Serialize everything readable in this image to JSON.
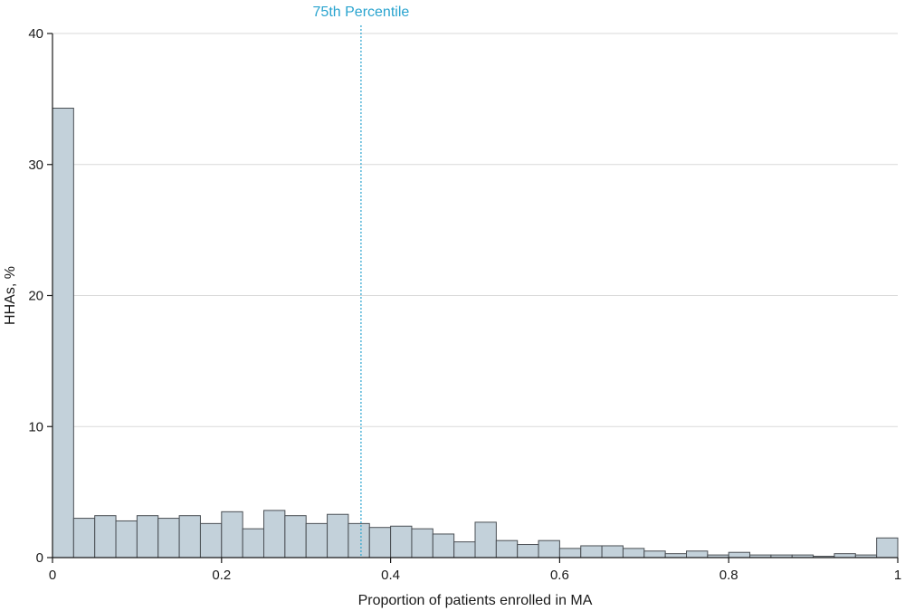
{
  "chart_data": {
    "type": "bar",
    "subtype": "histogram",
    "xlabel": "Proportion of patients enrolled in MA",
    "ylabel": "HHAs, %",
    "xlim": [
      0,
      1
    ],
    "ylim": [
      0,
      40
    ],
    "x_ticks": [
      0,
      0.2,
      0.4,
      0.6,
      0.8,
      1
    ],
    "x_tick_labels": [
      "0",
      "0.2",
      "0.4",
      "0.6",
      "0.8",
      "1"
    ],
    "y_ticks": [
      0,
      10,
      20,
      30,
      40
    ],
    "y_tick_labels": [
      "0",
      "10",
      "20",
      "30",
      "40"
    ],
    "grid": "horizontal",
    "bar_color": "#c3d1da",
    "bar_edge_color": "#4a4f54",
    "bin_width": 0.025,
    "bin_starts": [
      0,
      0.025,
      0.05,
      0.075,
      0.1,
      0.125,
      0.15,
      0.175,
      0.2,
      0.225,
      0.25,
      0.275,
      0.3,
      0.325,
      0.35,
      0.375,
      0.4,
      0.425,
      0.45,
      0.475,
      0.5,
      0.525,
      0.55,
      0.575,
      0.6,
      0.625,
      0.65,
      0.675,
      0.7,
      0.725,
      0.75,
      0.775,
      0.8,
      0.825,
      0.85,
      0.875,
      0.9,
      0.925,
      0.95,
      0.975
    ],
    "values": [
      34.3,
      3.0,
      3.2,
      2.8,
      3.2,
      3.0,
      3.2,
      2.6,
      3.5,
      2.2,
      3.6,
      3.2,
      2.6,
      3.3,
      2.6,
      2.3,
      2.4,
      2.2,
      1.8,
      1.2,
      2.7,
      1.3,
      1.0,
      1.3,
      0.7,
      0.9,
      0.9,
      0.7,
      0.5,
      0.3,
      0.5,
      0.2,
      0.4,
      0.2,
      0.2,
      0.2,
      0.1,
      0.3,
      0.2,
      1.5
    ],
    "reference_line": {
      "label": "75th Percentile",
      "x": 0.365,
      "color": "#2aa4cf",
      "style": "dotted"
    }
  }
}
